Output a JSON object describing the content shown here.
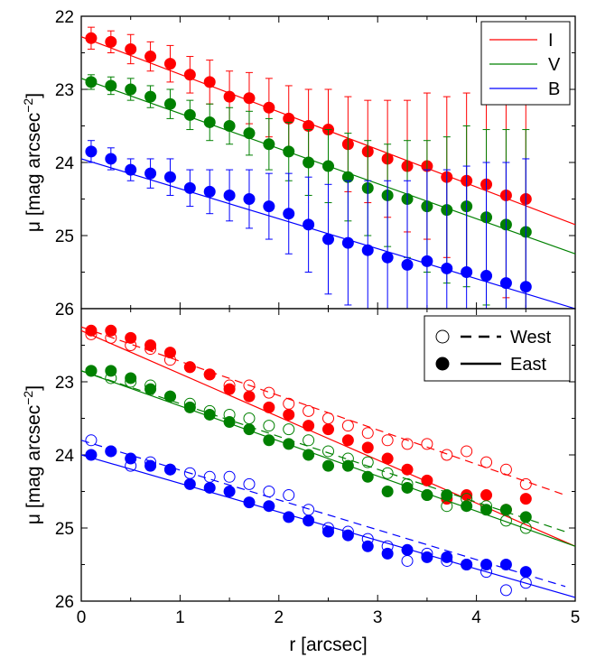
{
  "chart_data": [
    {
      "type": "scatter",
      "panel": "top",
      "xlabel": "",
      "ylabel": "μ [mag arcsec−2]",
      "xlim": [
        0,
        5
      ],
      "ylim": [
        26,
        22
      ],
      "y_inverted": true,
      "xticks": [],
      "yticks": [
        "22",
        "23",
        "24",
        "25",
        "26"
      ],
      "legend": {
        "placement": "top-right",
        "entries": [
          "I",
          "V",
          "B"
        ]
      },
      "series": [
        {
          "name": "I",
          "color": "#ff0000",
          "x": [
            0.1,
            0.3,
            0.5,
            0.7,
            0.9,
            1.1,
            1.3,
            1.5,
            1.7,
            1.9,
            2.1,
            2.3,
            2.5,
            2.7,
            2.9,
            3.1,
            3.3,
            3.5,
            3.7,
            3.9,
            4.1,
            4.3,
            4.5
          ],
          "y": [
            22.3,
            22.35,
            22.45,
            22.55,
            22.65,
            22.8,
            22.9,
            23.1,
            23.12,
            23.25,
            23.4,
            23.5,
            23.55,
            23.75,
            23.85,
            23.95,
            24.05,
            24.05,
            24.2,
            24.25,
            24.3,
            24.45,
            24.5
          ],
          "err": [
            0.15,
            0.15,
            0.2,
            0.2,
            0.25,
            0.25,
            0.3,
            0.35,
            0.35,
            0.4,
            0.45,
            0.5,
            0.55,
            0.65,
            0.7,
            0.8,
            0.9,
            1.0,
            1.1,
            1.2,
            1.3,
            1.4,
            1.5
          ],
          "fit": [
            [
              0,
              22.28
            ],
            [
              5,
              24.85
            ]
          ]
        },
        {
          "name": "V",
          "color": "#008000",
          "x": [
            0.1,
            0.3,
            0.5,
            0.7,
            0.9,
            1.1,
            1.3,
            1.5,
            1.7,
            1.9,
            2.1,
            2.3,
            2.5,
            2.7,
            2.9,
            3.1,
            3.3,
            3.5,
            3.7,
            3.9,
            4.1,
            4.3,
            4.5
          ],
          "y": [
            22.9,
            22.95,
            23.0,
            23.1,
            23.2,
            23.35,
            23.45,
            23.5,
            23.6,
            23.75,
            23.85,
            24.0,
            24.05,
            24.2,
            24.35,
            24.45,
            24.5,
            24.6,
            24.65,
            24.6,
            24.75,
            24.85,
            24.95
          ],
          "err": [
            0.1,
            0.12,
            0.15,
            0.15,
            0.2,
            0.2,
            0.25,
            0.25,
            0.3,
            0.35,
            0.4,
            0.45,
            0.5,
            0.6,
            0.65,
            0.7,
            0.8,
            0.9,
            1.0,
            1.1,
            1.2,
            1.3,
            1.4
          ],
          "fit": [
            [
              0,
              22.85
            ],
            [
              5,
              25.25
            ]
          ]
        },
        {
          "name": "B",
          "color": "#0000ff",
          "x": [
            0.1,
            0.3,
            0.5,
            0.7,
            0.9,
            1.1,
            1.3,
            1.5,
            1.7,
            1.9,
            2.1,
            2.3,
            2.5,
            2.7,
            2.9,
            3.1,
            3.3,
            3.5,
            3.7,
            3.9,
            4.1,
            4.3,
            4.5
          ],
          "y": [
            23.85,
            23.95,
            24.1,
            24.15,
            24.2,
            24.35,
            24.4,
            24.45,
            24.5,
            24.6,
            24.7,
            24.85,
            25.05,
            25.1,
            25.2,
            25.3,
            25.4,
            25.35,
            25.45,
            25.5,
            25.55,
            25.65,
            25.7
          ],
          "err": [
            0.15,
            0.15,
            0.15,
            0.2,
            0.25,
            0.25,
            0.3,
            0.35,
            0.4,
            0.45,
            0.55,
            0.65,
            0.75,
            0.85,
            0.95,
            1.05,
            1.15,
            1.25,
            1.35,
            1.45,
            1.55,
            1.65,
            1.75
          ],
          "fit": [
            [
              0,
              23.95
            ],
            [
              5,
              26.0
            ]
          ]
        }
      ]
    },
    {
      "type": "scatter",
      "panel": "bottom",
      "xlabel": "r [arcsec]",
      "ylabel": "μ [mag arcsec−2]",
      "xlim": [
        0,
        5
      ],
      "ylim": [
        26,
        22
      ],
      "y_inverted": true,
      "xticks": [
        "0",
        "1",
        "2",
        "3",
        "4",
        "5"
      ],
      "yticks": [
        "23",
        "24",
        "25",
        "26"
      ],
      "legend": {
        "placement": "top-right",
        "entries": [
          "West",
          "East"
        ]
      },
      "series": [
        {
          "name": "I West",
          "color": "#ff0000",
          "marker": "open",
          "line": "dashed",
          "x": [
            0.1,
            0.3,
            0.5,
            0.7,
            0.9,
            1.1,
            1.3,
            1.5,
            1.7,
            1.9,
            2.1,
            2.3,
            2.5,
            2.7,
            2.9,
            3.1,
            3.3,
            3.5,
            3.7,
            3.9,
            4.1,
            4.3,
            4.5
          ],
          "y": [
            22.35,
            22.4,
            22.5,
            22.55,
            22.7,
            22.8,
            22.9,
            23.05,
            23.05,
            23.15,
            23.3,
            23.4,
            23.5,
            23.6,
            23.7,
            23.8,
            23.85,
            23.85,
            24.0,
            23.95,
            24.1,
            24.2,
            24.4
          ],
          "fit": [
            [
              0,
              22.25
            ],
            [
              4.9,
              24.55
            ]
          ]
        },
        {
          "name": "I East",
          "color": "#ff0000",
          "marker": "filled",
          "line": "solid",
          "x": [
            0.1,
            0.3,
            0.5,
            0.7,
            0.9,
            1.1,
            1.3,
            1.5,
            1.7,
            1.9,
            2.1,
            2.3,
            2.5,
            2.7,
            2.9,
            3.1,
            3.3,
            3.5,
            3.7,
            3.9,
            4.1,
            4.3,
            4.5
          ],
          "y": [
            22.3,
            22.3,
            22.4,
            22.5,
            22.6,
            22.8,
            22.9,
            23.1,
            23.2,
            23.35,
            23.45,
            23.6,
            23.65,
            23.8,
            23.9,
            24.05,
            24.2,
            24.35,
            24.6,
            24.55,
            24.55,
            24.75,
            24.6
          ],
          "fit": [
            [
              0,
              22.3
            ],
            [
              5,
              25.25
            ]
          ]
        },
        {
          "name": "V West",
          "color": "#008000",
          "marker": "open",
          "line": "dashed",
          "x": [
            0.1,
            0.3,
            0.5,
            0.7,
            0.9,
            1.1,
            1.3,
            1.5,
            1.7,
            1.9,
            2.1,
            2.3,
            2.5,
            2.7,
            2.9,
            3.1,
            3.3,
            3.5,
            3.7,
            3.9,
            4.1,
            4.3,
            4.5
          ],
          "y": [
            22.85,
            22.95,
            23.0,
            23.05,
            23.2,
            23.3,
            23.4,
            23.45,
            23.5,
            23.6,
            23.65,
            23.8,
            23.95,
            24.05,
            24.1,
            24.25,
            24.4,
            24.55,
            24.7,
            24.6,
            24.7,
            24.9,
            25.0
          ],
          "fit": [
            [
              0,
              22.85
            ],
            [
              4.9,
              25.05
            ]
          ]
        },
        {
          "name": "V East",
          "color": "#008000",
          "marker": "filled",
          "line": "solid",
          "x": [
            0.1,
            0.3,
            0.5,
            0.7,
            0.9,
            1.1,
            1.3,
            1.5,
            1.7,
            1.9,
            2.1,
            2.3,
            2.5,
            2.7,
            2.9,
            3.1,
            3.3,
            3.5,
            3.7,
            3.9,
            4.1,
            4.3,
            4.5
          ],
          "y": [
            22.85,
            22.85,
            22.95,
            23.1,
            23.2,
            23.35,
            23.45,
            23.55,
            23.65,
            23.8,
            23.85,
            24.0,
            24.15,
            24.15,
            24.3,
            24.5,
            24.45,
            24.55,
            24.55,
            24.7,
            24.75,
            24.75,
            24.85
          ],
          "fit": [
            [
              0,
              22.85
            ],
            [
              5,
              25.25
            ]
          ]
        },
        {
          "name": "B West",
          "color": "#0000ff",
          "marker": "open",
          "line": "dashed",
          "x": [
            0.1,
            0.3,
            0.5,
            0.7,
            0.9,
            1.1,
            1.3,
            1.5,
            1.7,
            1.9,
            2.1,
            2.3,
            2.5,
            2.7,
            2.9,
            3.1,
            3.3,
            3.5,
            3.7,
            3.9,
            4.1,
            4.3,
            4.5
          ],
          "y": [
            23.8,
            23.95,
            24.15,
            24.1,
            24.2,
            24.25,
            24.3,
            24.3,
            24.4,
            24.5,
            24.55,
            24.75,
            25.0,
            25.05,
            25.15,
            25.25,
            25.45,
            25.35,
            25.45,
            25.5,
            25.6,
            25.85,
            25.75
          ],
          "fit": [
            [
              0,
              23.8
            ],
            [
              4.9,
              25.8
            ]
          ]
        },
        {
          "name": "B East",
          "color": "#0000ff",
          "marker": "filled",
          "line": "solid",
          "x": [
            0.1,
            0.3,
            0.5,
            0.7,
            0.9,
            1.1,
            1.3,
            1.5,
            1.7,
            1.9,
            2.1,
            2.3,
            2.5,
            2.7,
            2.9,
            3.1,
            3.3,
            3.5,
            3.7,
            3.9,
            4.1,
            4.3,
            4.5
          ],
          "y": [
            24.0,
            23.95,
            24.05,
            24.15,
            24.2,
            24.4,
            24.45,
            24.5,
            24.65,
            24.7,
            24.85,
            24.9,
            25.05,
            25.1,
            25.25,
            25.35,
            25.3,
            25.4,
            25.4,
            25.5,
            25.5,
            25.5,
            25.6
          ],
          "fit": [
            [
              0,
              24.0
            ],
            [
              5,
              25.95
            ]
          ]
        }
      ]
    }
  ],
  "legend_top": [
    {
      "label": "I",
      "color": "#ff0000"
    },
    {
      "label": "V",
      "color": "#008000"
    },
    {
      "label": "B",
      "color": "#0000ff"
    }
  ],
  "legend_bottom": [
    {
      "label": "West",
      "marker": "open",
      "line": "dashed"
    },
    {
      "label": "East",
      "marker": "filled",
      "line": "solid"
    }
  ]
}
